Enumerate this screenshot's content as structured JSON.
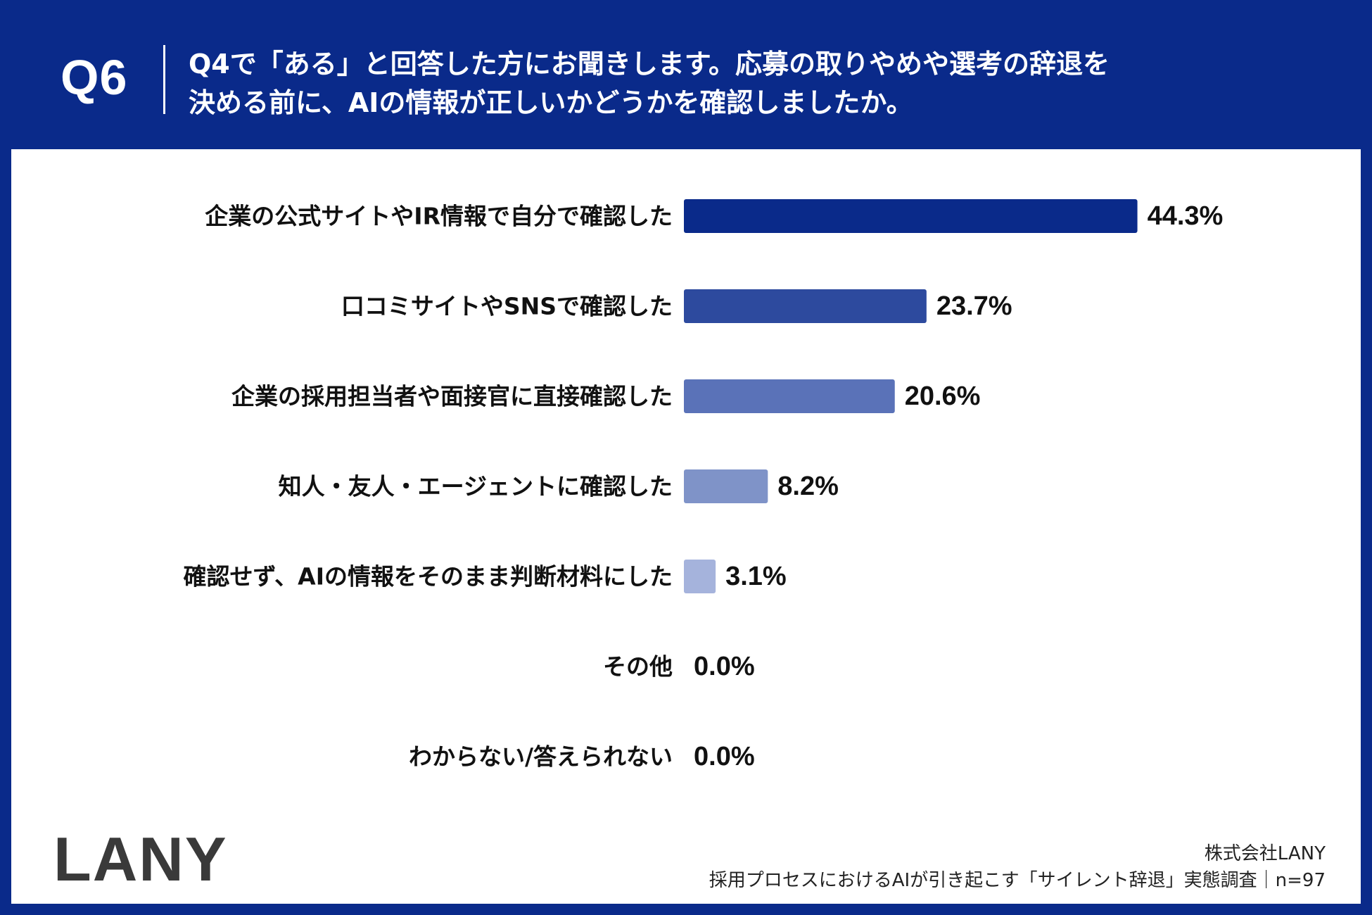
{
  "question": {
    "label": "Q6",
    "line1": "Q4で「ある」と回答した方にお聞きします。応募の取りやめや選考の辞退を",
    "line2": "決める前に、AIの情報が正しいかどうかを確認しましたか。"
  },
  "chart_data": {
    "type": "bar",
    "orientation": "horizontal",
    "categories": [
      "企業の公式サイトやIR情報で自分で確認した",
      "口コミサイトやSNSで確認した",
      "企業の採用担当者や面接官に直接確認した",
      "知人・友人・エージェントに確認した",
      "確認せず、AIの情報をそのまま判断材料にした",
      "その他",
      "わからない/答えられない"
    ],
    "values": [
      44.3,
      23.7,
      20.6,
      8.2,
      3.1,
      0.0,
      0.0
    ],
    "value_labels": [
      "44.3%",
      "23.7%",
      "20.6%",
      "8.2%",
      "3.1%",
      "0.0%",
      "0.0%"
    ],
    "unit": "%",
    "colors": [
      "#0a2a8a",
      "#2d4a9e",
      "#5a72b8",
      "#7f93c8",
      "#a5b3dc",
      "#c5cde8",
      "#c5cde8"
    ],
    "xlim": [
      0,
      50
    ]
  },
  "footer": {
    "logo": "LANY",
    "company": "株式会社LANY",
    "survey": "採用プロセスにおけるAIが引き起こす「サイレント辞退」実態調査｜n=97"
  }
}
